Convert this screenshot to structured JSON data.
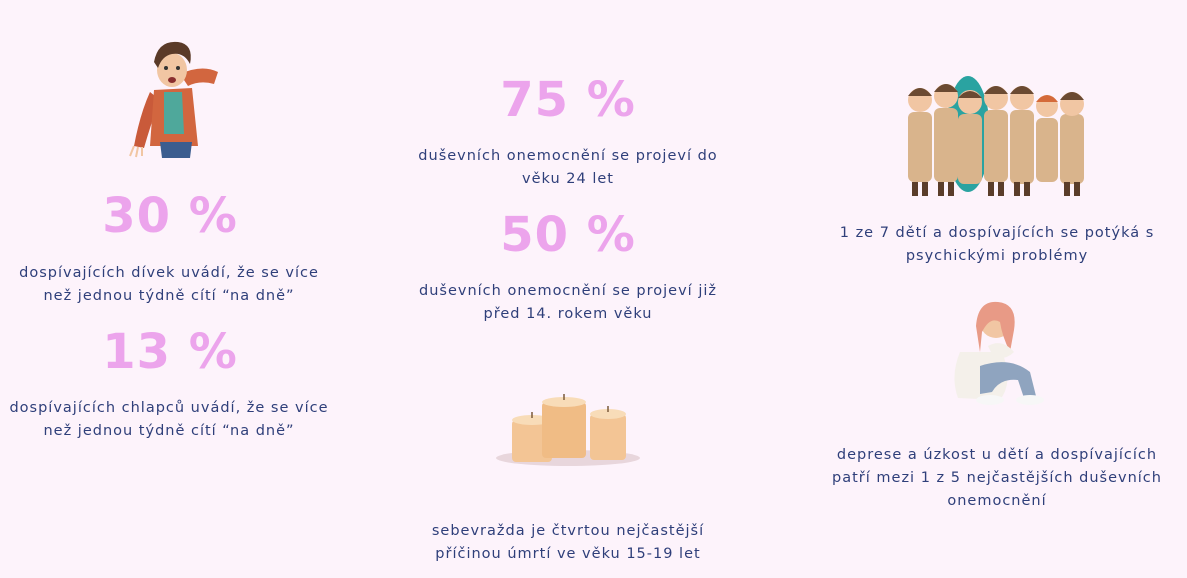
{
  "stats": [
    {
      "value": "30 %",
      "text": "dospívajících dívek uvádí, že se více než jednou týdně cítí “na dně”"
    },
    {
      "value": "13 %",
      "text": "dospívajících chlapců uvádí, že se více než jednou týdně cítí “na dně”"
    },
    {
      "value": "75 %",
      "text": "duševních onemocnění se projeví do věku 24 let"
    },
    {
      "value": "50 %",
      "text": "duševních onemocnění se projeví již před 14. rokem věku"
    }
  ],
  "facts": [
    {
      "text": "sebevražda je čtvrtou nejčastější příčinou úmrtí ve věku 15-19 let"
    },
    {
      "text": "1 ze 7 dětí a dospívajících se potýká s psychickými problémy"
    },
    {
      "text": "deprese a úzkost u dětí a dospívajících patří mezi 1 z 5 nejčastějších duševních onemocnění"
    }
  ],
  "colors": {
    "stat": "#eca4ec",
    "text": "#2f3f7a",
    "background": "#fdf3fb"
  }
}
